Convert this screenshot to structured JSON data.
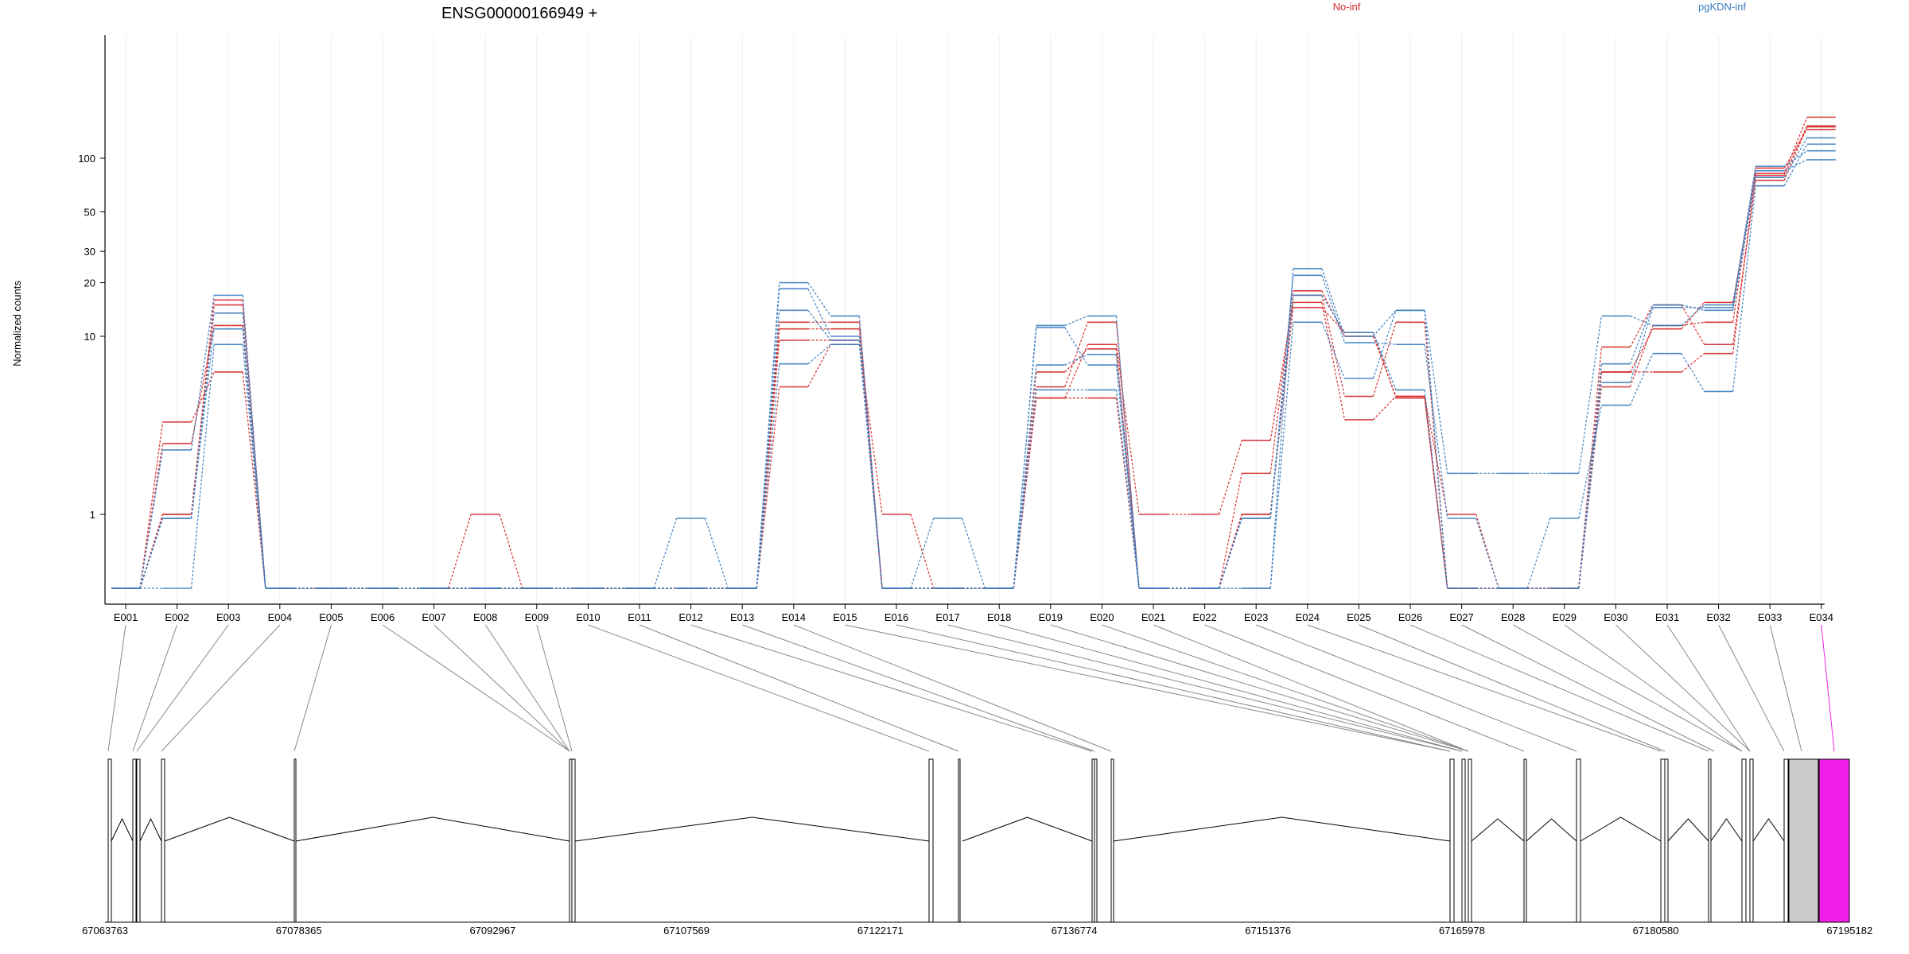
{
  "header": {
    "title": "ENSG00000166949 +",
    "legend_no_inf": "No-inf",
    "legend_pgkdn_inf": "pgKDN-inf"
  },
  "colors": {
    "no_inf": "#d62728",
    "pgkdn_inf": "#3a7dbf",
    "highlight": "#f01fe8",
    "gray_box": "#cccccc"
  },
  "chart_data": {
    "type": "line",
    "title": "ENSG00000166949 +",
    "ylabel": "Normalized counts",
    "yscale": "log",
    "yticks": [
      1,
      10,
      20,
      30,
      50,
      100
    ],
    "grid": "vertical",
    "legend_placement": "top",
    "categories": [
      "E001",
      "E002",
      "E003",
      "E004",
      "E005",
      "E006",
      "E007",
      "E008",
      "E009",
      "E010",
      "E011",
      "E012",
      "E013",
      "E014",
      "E015",
      "E016",
      "E017",
      "E018",
      "E019",
      "E020",
      "E021",
      "E022",
      "E023",
      "E024",
      "E025",
      "E026",
      "E027",
      "E028",
      "E029",
      "E030",
      "E031",
      "E032",
      "E033",
      "E034"
    ],
    "series": [
      {
        "group": "No-inf",
        "values": [
          0,
          3.3,
          6.3,
          0,
          0,
          0,
          0,
          1.0,
          0,
          0,
          0,
          0,
          0,
          5.2,
          9.0,
          1.0,
          0,
          0,
          4.5,
          9.0,
          1.0,
          1.0,
          2.6,
          15.5,
          3.4,
          4.6,
          1.0,
          0,
          0,
          6.3,
          6.3,
          8.0,
          82,
          170
        ]
      },
      {
        "group": "No-inf",
        "values": [
          0,
          2.5,
          11.5,
          0,
          0,
          0,
          0,
          0,
          0,
          0,
          0,
          0,
          0,
          9.5,
          9.5,
          0,
          0,
          0,
          5.2,
          12.0,
          0,
          0,
          1.0,
          17.0,
          4.6,
          12.0,
          0,
          0,
          0,
          5.2,
          11.5,
          12.0,
          88,
          145
        ]
      },
      {
        "group": "No-inf",
        "values": [
          0,
          1.0,
          16.0,
          0,
          0,
          0,
          0,
          0,
          0,
          0,
          0,
          0,
          0,
          12.0,
          12.0,
          0,
          0,
          0,
          6.3,
          8.5,
          0,
          0,
          1.0,
          14.5,
          10.5,
          4.5,
          0,
          0,
          0,
          8.7,
          15.0,
          9.0,
          75,
          150
        ]
      },
      {
        "group": "No-inf",
        "values": [
          0,
          1.0,
          15.0,
          0,
          0,
          0,
          0,
          0,
          0,
          0,
          0,
          0,
          0,
          11.0,
          11.0,
          0,
          0,
          0,
          4.5,
          4.5,
          0,
          0,
          1.7,
          18.0,
          10.0,
          4.6,
          0,
          0,
          0,
          6.3,
          11.0,
          15.5,
          80,
          152
        ]
      },
      {
        "group": "pgKDN-inf",
        "values": [
          0,
          0,
          9.0,
          0,
          0,
          0,
          0,
          0,
          0,
          0,
          0,
          0.95,
          0,
          20.0,
          13.0,
          0,
          0.95,
          0,
          11.5,
          13.0,
          0,
          0,
          0,
          24.0,
          10.0,
          14.0,
          1.7,
          1.7,
          1.7,
          13.0,
          11.5,
          15.0,
          90,
          110
        ]
      },
      {
        "group": "pgKDN-inf",
        "values": [
          0,
          2.3,
          17.0,
          0,
          0,
          0,
          0,
          0,
          0,
          0,
          0,
          0,
          0,
          18.5,
          10.0,
          0,
          0,
          0,
          6.9,
          7.9,
          0,
          0,
          0,
          12.0,
          5.8,
          14.0,
          0,
          0,
          0.95,
          4.1,
          8.0,
          4.9,
          70,
          120
        ]
      },
      {
        "group": "pgKDN-inf",
        "values": [
          0,
          0.95,
          13.5,
          0,
          0,
          0,
          0,
          0,
          0,
          0,
          0,
          0,
          0,
          7.0,
          9.0,
          0,
          0,
          0,
          11.2,
          6.9,
          0,
          0,
          0.95,
          22.0,
          9.2,
          9.0,
          0.95,
          0,
          0,
          5.5,
          14.5,
          14.5,
          85,
          98
        ]
      },
      {
        "group": "pgKDN-inf",
        "values": [
          0,
          0.95,
          11.0,
          0,
          0,
          0,
          0,
          0,
          0,
          0,
          0,
          0,
          0,
          14.0,
          9.5,
          0,
          0,
          0,
          5.0,
          5.0,
          0,
          0,
          0.95,
          17.0,
          10.5,
          5.0,
          0,
          0,
          0,
          7.0,
          15.0,
          14.0,
          78,
          130
        ]
      }
    ],
    "coordinate_ticks": [
      "67063763",
      "67078365",
      "67092967",
      "67107569",
      "67122171",
      "67136774",
      "67151376",
      "67165978",
      "67180580",
      "67195182"
    ]
  }
}
